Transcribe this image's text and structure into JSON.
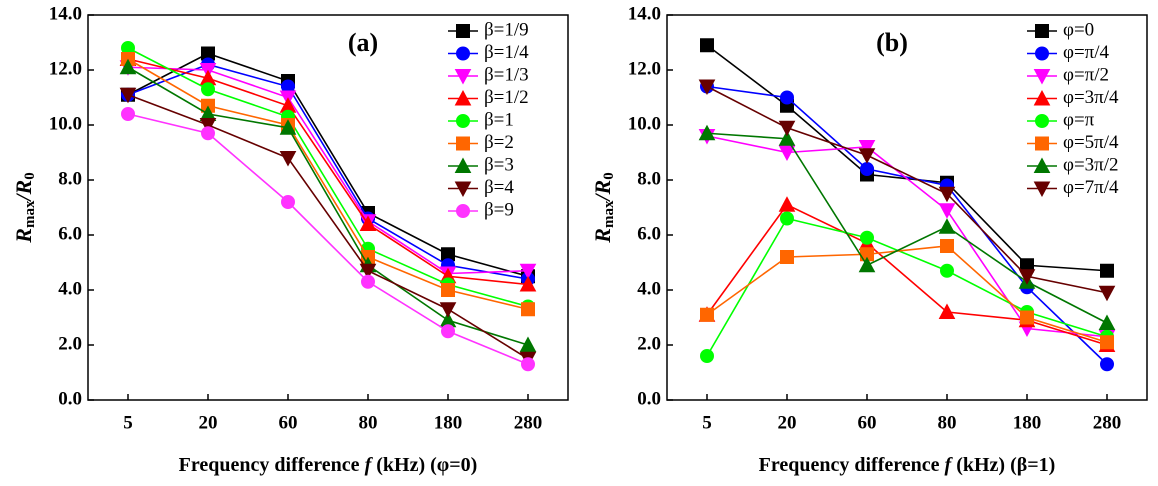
{
  "chart_data": [
    {
      "type": "line",
      "panel_label": "(a)",
      "x_label": [
        "Frequency difference ",
        "f",
        " (kHz) (φ=0)"
      ],
      "y_label": [
        "R",
        "max",
        "/R",
        "0"
      ],
      "categories": [
        "5",
        "20",
        "60",
        "80",
        "180",
        "280"
      ],
      "ylim": [
        0,
        14
      ],
      "yticks": [
        {
          "value": 0,
          "label": "0.0"
        },
        {
          "value": 2,
          "label": "2.0"
        },
        {
          "value": 4,
          "label": "4.0"
        },
        {
          "value": 6,
          "label": "6.0"
        },
        {
          "value": 8,
          "label": "8.0"
        },
        {
          "value": 10,
          "label": "10.0"
        },
        {
          "value": 12,
          "label": "12.0"
        },
        {
          "value": 14,
          "label": "14.0"
        }
      ],
      "legend": "upper right",
      "series": [
        {
          "name": "β=1/9",
          "color": "#000000",
          "marker": "square",
          "values": [
            11.1,
            12.6,
            11.6,
            6.8,
            5.3,
            4.5
          ]
        },
        {
          "name": "β=1/4",
          "color": "#0000ff",
          "marker": "circle",
          "values": [
            11.1,
            12.2,
            11.4,
            6.6,
            4.9,
            4.4
          ]
        },
        {
          "name": "β=1/3",
          "color": "#ff00ff",
          "marker": "triangle-down",
          "values": [
            12.1,
            12.0,
            11.0,
            6.5,
            4.6,
            4.7
          ]
        },
        {
          "name": "β=1/2",
          "color": "#ff0000",
          "marker": "triangle-up",
          "values": [
            12.4,
            11.7,
            10.7,
            6.4,
            4.5,
            4.2
          ]
        },
        {
          "name": "β=1",
          "color": "#00ff00",
          "marker": "circle",
          "values": [
            12.8,
            11.3,
            10.3,
            5.5,
            4.2,
            3.4
          ]
        },
        {
          "name": "β=2",
          "color": "#ff6600",
          "marker": "square",
          "values": [
            12.4,
            10.7,
            10.0,
            5.2,
            4.0,
            3.3
          ]
        },
        {
          "name": "β=3",
          "color": "#007700",
          "marker": "triangle-up",
          "values": [
            12.1,
            10.4,
            9.9,
            4.9,
            2.9,
            2.0
          ]
        },
        {
          "name": "β=4",
          "color": "#660000",
          "marker": "triangle-down",
          "values": [
            11.1,
            10.0,
            8.8,
            4.7,
            3.3,
            1.5
          ]
        },
        {
          "name": "β=9",
          "color": "#ff33ff",
          "marker": "circle",
          "values": [
            10.4,
            9.7,
            7.2,
            4.3,
            2.5,
            1.3
          ]
        }
      ]
    },
    {
      "type": "line",
      "panel_label": "(b)",
      "x_label": [
        "Frequency difference ",
        "f",
        " (kHz) (β=1)"
      ],
      "y_label": [
        "R",
        "max",
        "/R",
        "0"
      ],
      "categories": [
        "5",
        "20",
        "60",
        "80",
        "180",
        "280"
      ],
      "ylim": [
        0,
        14
      ],
      "yticks": [
        {
          "value": 0,
          "label": "0.0"
        },
        {
          "value": 2,
          "label": "2.0"
        },
        {
          "value": 4,
          "label": "4.0"
        },
        {
          "value": 6,
          "label": "6.0"
        },
        {
          "value": 8,
          "label": "8.0"
        },
        {
          "value": 10,
          "label": "10.0"
        },
        {
          "value": 12,
          "label": "12.0"
        },
        {
          "value": 14,
          "label": "14.0"
        }
      ],
      "legend": "upper right",
      "series": [
        {
          "name": "φ=0",
          "color": "#000000",
          "marker": "square",
          "values": [
            12.9,
            10.7,
            8.2,
            7.9,
            4.9,
            4.7
          ]
        },
        {
          "name": "φ=π/4",
          "color": "#0000ff",
          "marker": "circle",
          "values": [
            11.4,
            11.0,
            8.4,
            7.8,
            4.1,
            1.3
          ]
        },
        {
          "name": "φ=π/2",
          "color": "#ff00ff",
          "marker": "triangle-down",
          "values": [
            9.6,
            9.0,
            9.2,
            6.9,
            2.6,
            2.3
          ]
        },
        {
          "name": "φ=3π/4",
          "color": "#ff0000",
          "marker": "triangle-up",
          "values": [
            3.1,
            7.1,
            5.7,
            3.2,
            2.9,
            2.0
          ]
        },
        {
          "name": "φ=π",
          "color": "#00ff00",
          "marker": "circle",
          "values": [
            1.6,
            6.6,
            5.9,
            4.7,
            3.2,
            2.3
          ]
        },
        {
          "name": "φ=5π/4",
          "color": "#ff6600",
          "marker": "square",
          "values": [
            3.1,
            5.2,
            5.3,
            5.6,
            3.0,
            2.1
          ]
        },
        {
          "name": "φ=3π/2",
          "color": "#007700",
          "marker": "triangle-up",
          "values": [
            9.7,
            9.5,
            4.9,
            6.3,
            4.3,
            2.8
          ]
        },
        {
          "name": "φ=7π/4",
          "color": "#660000",
          "marker": "triangle-down",
          "values": [
            11.4,
            9.9,
            8.9,
            7.5,
            4.5,
            3.9
          ]
        }
      ]
    }
  ]
}
